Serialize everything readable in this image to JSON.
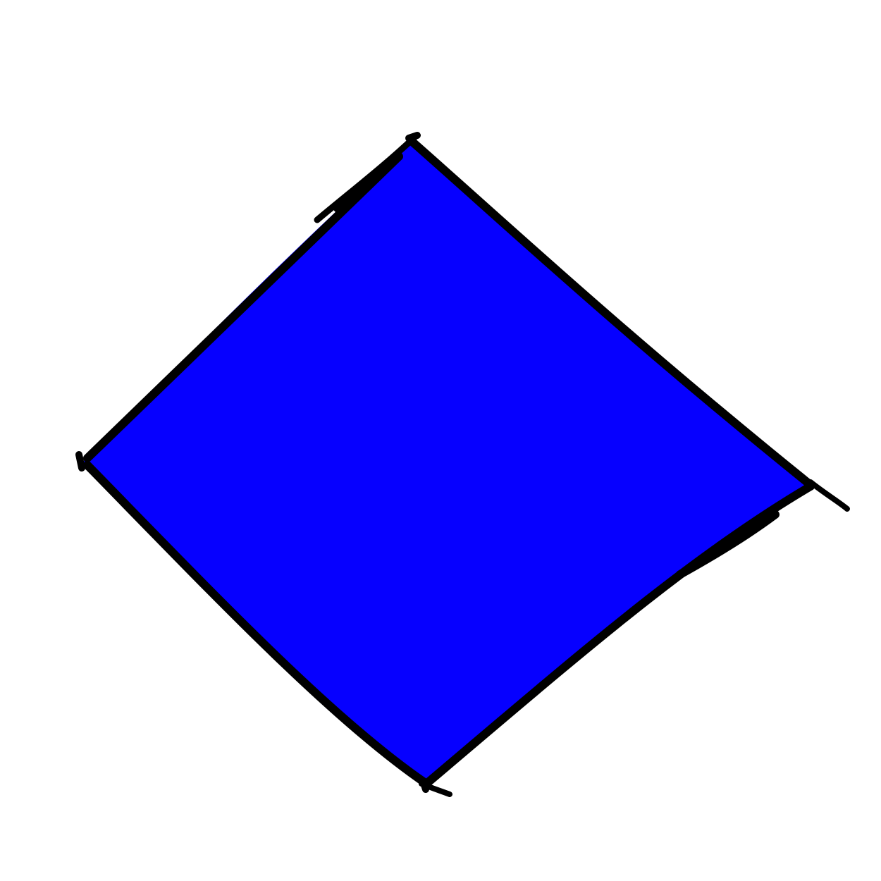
{
  "shape": {
    "kind": "quadrilateral",
    "fill_color": "#0600ff",
    "stroke_color": "#000000",
    "background_color": "#ffffff"
  }
}
